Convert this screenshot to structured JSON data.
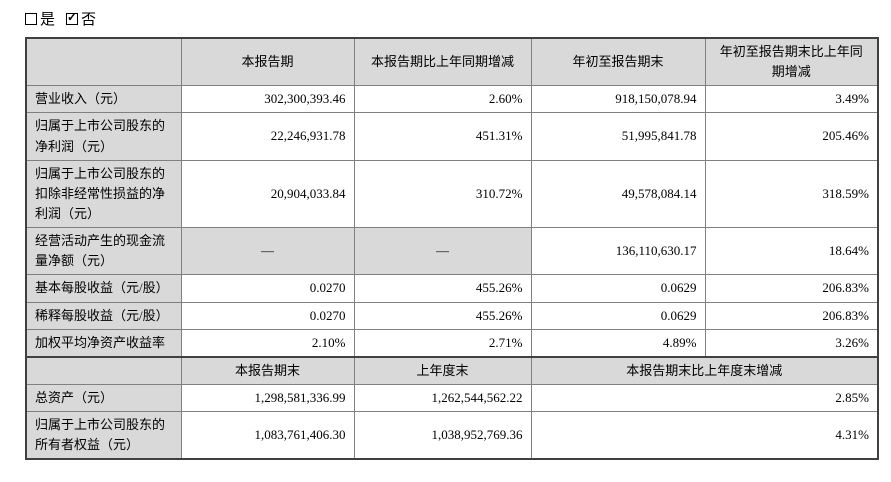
{
  "checkbox_row": {
    "yes_label": "是",
    "no_label": "否",
    "yes_checked": false,
    "no_checked": true
  },
  "table": {
    "section1": {
      "header": [
        "",
        "本报告期",
        "本报告期比上年同期增减",
        "年初至报告期末",
        "年初至报告期末比上年同期增减"
      ],
      "rows": [
        {
          "label": "营业收入（元）",
          "cells": [
            "302,300,393.46",
            "2.60%",
            "918,150,078.94",
            "3.49%"
          ]
        },
        {
          "label": "归属于上市公司股东的净利润（元）",
          "cells": [
            "22,246,931.78",
            "451.31%",
            "51,995,841.78",
            "205.46%"
          ]
        },
        {
          "label": "归属于上市公司股东的扣除非经常性损益的净利润（元）",
          "cells": [
            "20,904,033.84",
            "310.72%",
            "49,578,084.14",
            "318.59%"
          ]
        },
        {
          "label": "经营活动产生的现金流量净额（元）",
          "cells": [
            "—",
            "—",
            "136,110,630.17",
            "18.64%"
          ]
        },
        {
          "label": "基本每股收益（元/股）",
          "cells": [
            "0.0270",
            "455.26%",
            "0.0629",
            "206.83%"
          ]
        },
        {
          "label": "稀释每股收益（元/股）",
          "cells": [
            "0.0270",
            "455.26%",
            "0.0629",
            "206.83%"
          ]
        },
        {
          "label": "加权平均净资产收益率",
          "cells": [
            "2.10%",
            "2.71%",
            "4.89%",
            "3.26%"
          ]
        }
      ]
    },
    "section2": {
      "header": [
        "",
        "本报告期末",
        "上年度末",
        "本报告期末比上年度末增减"
      ],
      "rows": [
        {
          "label": "总资产（元）",
          "cells": [
            "1,298,581,336.99",
            "1,262,544,562.22",
            "2.85%"
          ]
        },
        {
          "label": "归属于上市公司股东的所有者权益（元）",
          "cells": [
            "1,083,761,406.30",
            "1,038,952,769.36",
            "4.31%"
          ]
        }
      ]
    }
  },
  "colors": {
    "shaded_bg": "#d9d9d9",
    "grid_line": "#808080",
    "outer_border": "#404040",
    "text": "#000000"
  }
}
